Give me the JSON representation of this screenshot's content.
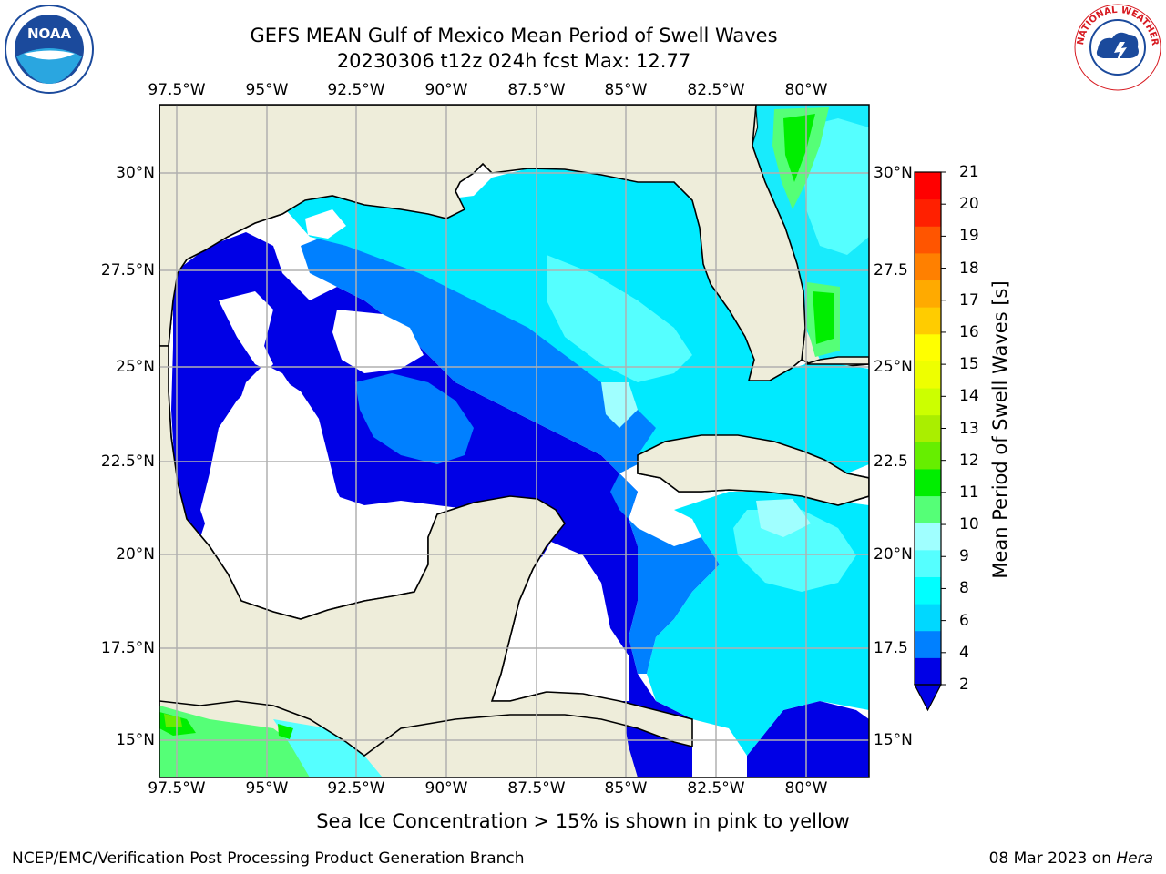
{
  "header": {
    "title": "GEFS MEAN Gulf of Mexico Mean Period of Swell Waves",
    "subtitle": "20230306 t12z 024h fcst   Max: 12.77"
  },
  "map": {
    "lon_labels": [
      "97.5°W",
      "95°W",
      "92.5°W",
      "90°W",
      "87.5°W",
      "85°W",
      "82.5°W",
      "80°W"
    ],
    "lat_labels_left": [
      "30°N",
      "27.5°N",
      "25°N",
      "22.5°N",
      "20°N",
      "17.5°N",
      "15°N"
    ],
    "lat_labels_right": [
      "30°N",
      "27.5",
      "25°N",
      "22.5",
      "20°N",
      "17.5",
      "15°N"
    ]
  },
  "colorbar": {
    "title": "Mean Period of Swell Waves [s]",
    "ticks": [
      "2",
      "4",
      "6",
      "8",
      "9",
      "10",
      "11",
      "12",
      "13",
      "14",
      "15",
      "16",
      "17",
      "18",
      "19",
      "20",
      "21"
    ],
    "colors": [
      "#0000e6",
      "#0080ff",
      "#00d8ff",
      "#00ffff",
      "#55ffff",
      "#a0ffff",
      "#55ff77",
      "#00ee00",
      "#66ee00",
      "#aaee00",
      "#ccff00",
      "#eeff00",
      "#ffff00",
      "#ffcc00",
      "#ffaa00",
      "#ff8000",
      "#ff5500",
      "#ff2000",
      "#ff0000"
    ]
  },
  "colors": {
    "land": "#eeedda",
    "ocean_blank": "#ffffff",
    "grid": "#b0b0b0"
  },
  "caption": "Sea Ice Concentration > 15% is shown in pink to yellow",
  "footer": {
    "left": "NCEP/EMC/Verification Post Processing Product Generation Branch",
    "right_date": "08 Mar 2023 on",
    "right_host": "Hera"
  },
  "logos": {
    "left": "NOAA",
    "right": "NATIONAL WEATHER SERVICE"
  }
}
